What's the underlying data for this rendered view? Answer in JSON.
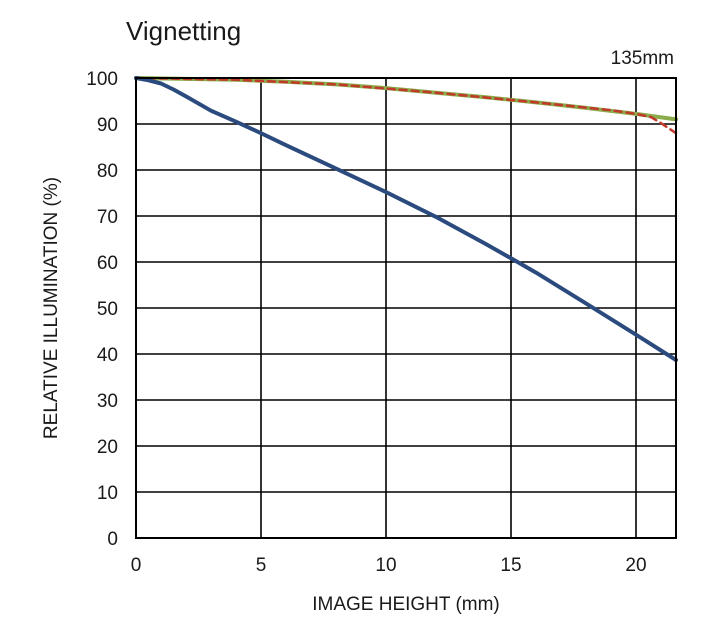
{
  "chart_data": {
    "type": "line",
    "title": "Vignetting",
    "subtitle": "135mm",
    "xlabel": "IMAGE HEIGHT (mm)",
    "ylabel": "RELATIVE ILLUMINATION (%)",
    "xlim": [
      0,
      21.6
    ],
    "ylim": [
      0,
      100
    ],
    "xticks": [
      0,
      5,
      10,
      15,
      20
    ],
    "yticks": [
      0,
      10,
      20,
      30,
      40,
      50,
      60,
      70,
      80,
      90,
      100
    ],
    "xtick_labels": [
      "0",
      "5",
      "10",
      "15",
      "20"
    ],
    "ytick_labels": [
      "0",
      "10",
      "20",
      "30",
      "40",
      "50",
      "60",
      "70",
      "80",
      "90",
      "100"
    ],
    "grid": true,
    "series": [
      {
        "color": "#8aac4a",
        "style": "solid",
        "x": [
          0,
          2,
          4,
          6,
          8,
          10,
          12,
          14,
          16,
          18,
          20,
          21.6
        ],
        "y": [
          100,
          99.8,
          99.6,
          99.2,
          98.6,
          97.8,
          96.8,
          95.8,
          94.7,
          93.5,
          92.2,
          91.0
        ]
      },
      {
        "color": "#c0392b",
        "style": "dashed",
        "x": [
          0,
          4,
          8,
          12,
          16,
          19,
          20,
          20.6,
          21.0,
          21.6
        ],
        "y": [
          100,
          99.6,
          98.6,
          96.8,
          94.7,
          93.0,
          92.2,
          91.5,
          90.2,
          88.0
        ]
      },
      {
        "color": "#2b4a7e",
        "style": "solid",
        "x": [
          0,
          0.5,
          1,
          1.5,
          2,
          3,
          4,
          5,
          6,
          8,
          10,
          12,
          14,
          15,
          16,
          18,
          20,
          21.6
        ],
        "y": [
          100,
          99.5,
          98.8,
          97.5,
          96.0,
          92.9,
          90.5,
          88.0,
          85.4,
          80.3,
          75.2,
          69.8,
          63.9,
          60.8,
          57.7,
          51.0,
          44.2,
          38.7
        ]
      }
    ]
  }
}
